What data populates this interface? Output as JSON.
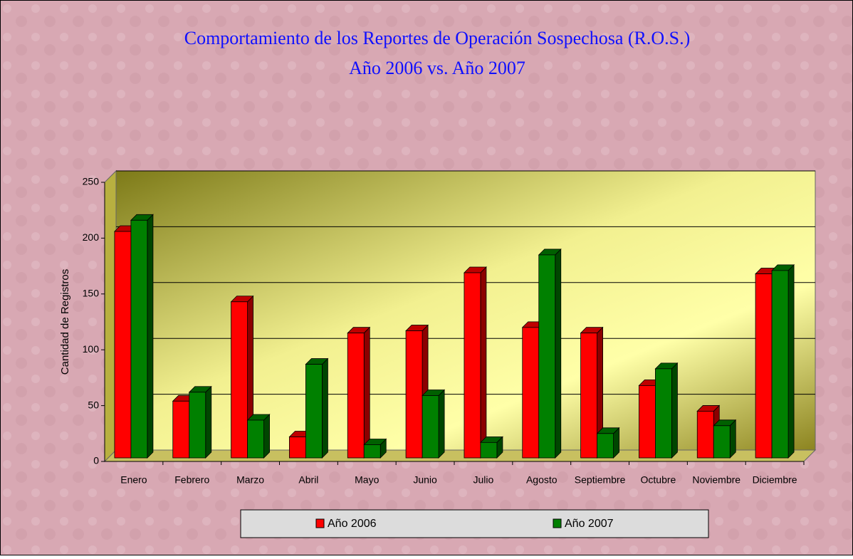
{
  "chart_data": {
    "type": "bar3d",
    "title": "Comportamiento de los Reportes de Operación Sospechosa (R.O.S.)",
    "subtitle": "Año 2006 vs. Año 2007",
    "y_label": "Cantidad de Registros",
    "categories": [
      "Enero",
      "Febrero",
      "Marzo",
      "Abril",
      "Mayo",
      "Junio",
      "Julio",
      "Agosto",
      "Septiembre",
      "Octubre",
      "Noviembre",
      "Diciembre"
    ],
    "series": [
      {
        "name": "Año 2006",
        "color": "#ff0000",
        "values": [
          206,
          54,
          143,
          22,
          115,
          117,
          169,
          120,
          115,
          68,
          45,
          168
        ]
      },
      {
        "name": "Año 2007",
        "color": "#008000",
        "values": [
          216,
          62,
          37,
          87,
          15,
          59,
          17,
          185,
          25,
          83,
          32,
          171
        ]
      }
    ],
    "ylim": [
      0,
      250
    ],
    "yticks": [
      0,
      50,
      100,
      150,
      200,
      250
    ],
    "grid": true,
    "legend": "bottom"
  }
}
